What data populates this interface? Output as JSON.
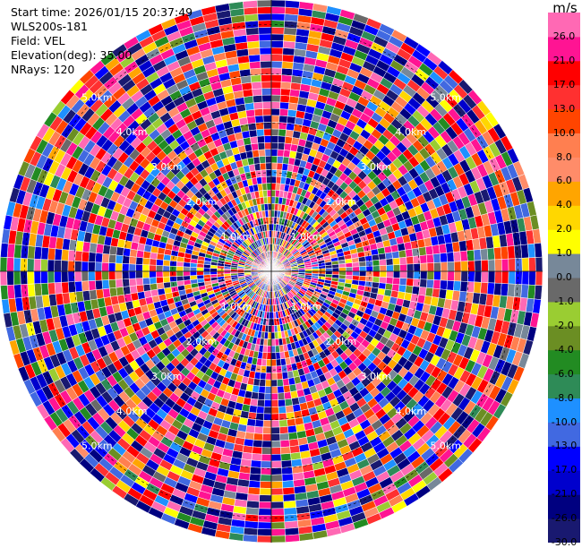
{
  "info": {
    "start_time": "Start time: 2026/01/15 20:37:49",
    "instrument": "WLS200s-181",
    "field": "Field: VEL",
    "elevation": "Elevation(deg): 35.00",
    "nrays": "NRays: 120"
  },
  "chart_data": {
    "type": "heatmap",
    "projection": "polar-ppi",
    "field": "VEL",
    "units": "m/s",
    "n_rays": 120,
    "range_rings_km": [
      1.0,
      2.0,
      3.0,
      4.0,
      5.0
    ],
    "range_ring_labels": [
      "1.0km",
      "2.0km",
      "3.0km",
      "4.0km",
      "5.0km"
    ],
    "max_range_km": 5.5,
    "colorbar": {
      "title": "m/s",
      "levels": [
        -30.0,
        -26.0,
        -21.0,
        -17.0,
        -13.0,
        -10.0,
        -8.0,
        -6.0,
        -4.0,
        -2.0,
        -1.0,
        0.0,
        1.0,
        2.0,
        4.0,
        6.0,
        8.0,
        10.0,
        13.0,
        17.0,
        21.0,
        26.0,
        30.0
      ],
      "tick_labels": [
        "26.0",
        "21.0",
        "17.0",
        "13.0",
        "10.0",
        "8.0",
        "6.0",
        "4.0",
        "2.0",
        "1.0",
        "0.0",
        "-1.0",
        "-2.0",
        "-4.0",
        "-6.0",
        "-8.0",
        "-10.0",
        "-13.0",
        "-17.0",
        "-21.0",
        "-26.0",
        "-30.0"
      ],
      "colors": [
        "#191970",
        "#000080",
        "#0000cd",
        "#0000ff",
        "#4169e1",
        "#1e90ff",
        "#2e8b57",
        "#228b22",
        "#6b8e23",
        "#9acd32",
        "#696969",
        "#778899",
        "#ffff00",
        "#ffd700",
        "#ffa500",
        "#ff8c69",
        "#ff7f50",
        "#ff4500",
        "#ff3030",
        "#ff0000",
        "#ff1493",
        "#ff69b4"
      ]
    }
  }
}
